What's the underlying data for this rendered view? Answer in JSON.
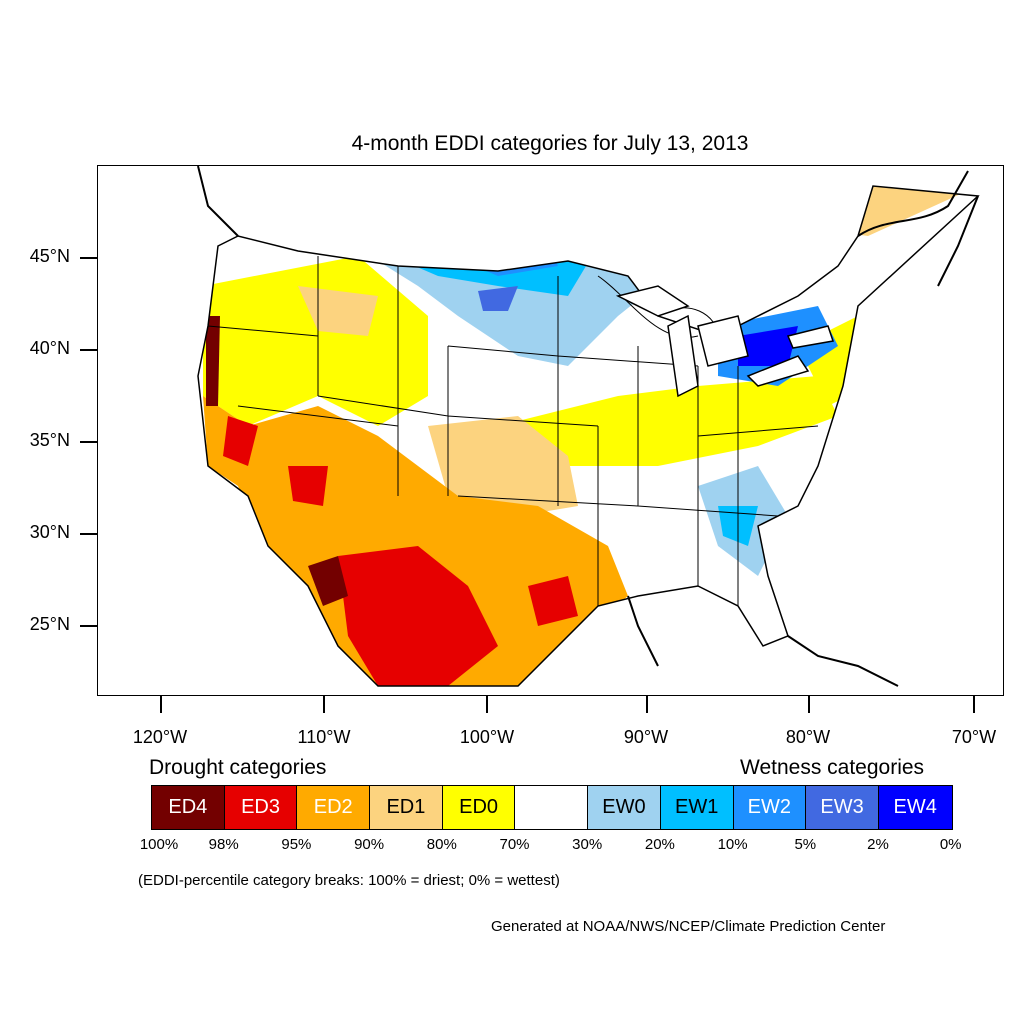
{
  "title": "4-month EDDI categories for July 13, 2013",
  "map": {
    "lat_labels": [
      "45°N",
      "40°N",
      "35°N",
      "30°N",
      "25°N"
    ],
    "lon_labels": [
      "120°W",
      "110°W",
      "100°W",
      "90°W",
      "80°W",
      "70°W"
    ]
  },
  "legend": {
    "drought_heading": "Drought categories",
    "wetness_heading": "Wetness categories",
    "categories": [
      {
        "label": "ED4",
        "color": "#730000",
        "text_color": "#ffffff"
      },
      {
        "label": "ED3",
        "color": "#e60000",
        "text_color": "#ffffff"
      },
      {
        "label": "ED2",
        "color": "#ffaa00",
        "text_color": "#ffffff"
      },
      {
        "label": "ED1",
        "color": "#fcd37f",
        "text_color": "#000000"
      },
      {
        "label": "ED0",
        "color": "#ffff00",
        "text_color": "#000000"
      },
      {
        "label": "",
        "color": "#ffffff",
        "text_color": "#000000"
      },
      {
        "label": "EW0",
        "color": "#9fd2f0",
        "text_color": "#000000"
      },
      {
        "label": "EW1",
        "color": "#00bfff",
        "text_color": "#000000"
      },
      {
        "label": "EW2",
        "color": "#1e90ff",
        "text_color": "#ffffff"
      },
      {
        "label": "EW3",
        "color": "#4169e1",
        "text_color": "#ffffff"
      },
      {
        "label": "EW4",
        "color": "#0000ff",
        "text_color": "#ffffff"
      }
    ],
    "breaks": [
      "100%",
      "98%",
      "95%",
      "90%",
      "80%",
      "70%",
      "30%",
      "20%",
      "10%",
      "5%",
      "2%",
      "0%"
    ]
  },
  "note": "(EDDI-percentile category breaks: 100% = driest; 0% = wettest)",
  "credit": "Generated at NOAA/NWS/NCEP/Climate Prediction Center"
}
